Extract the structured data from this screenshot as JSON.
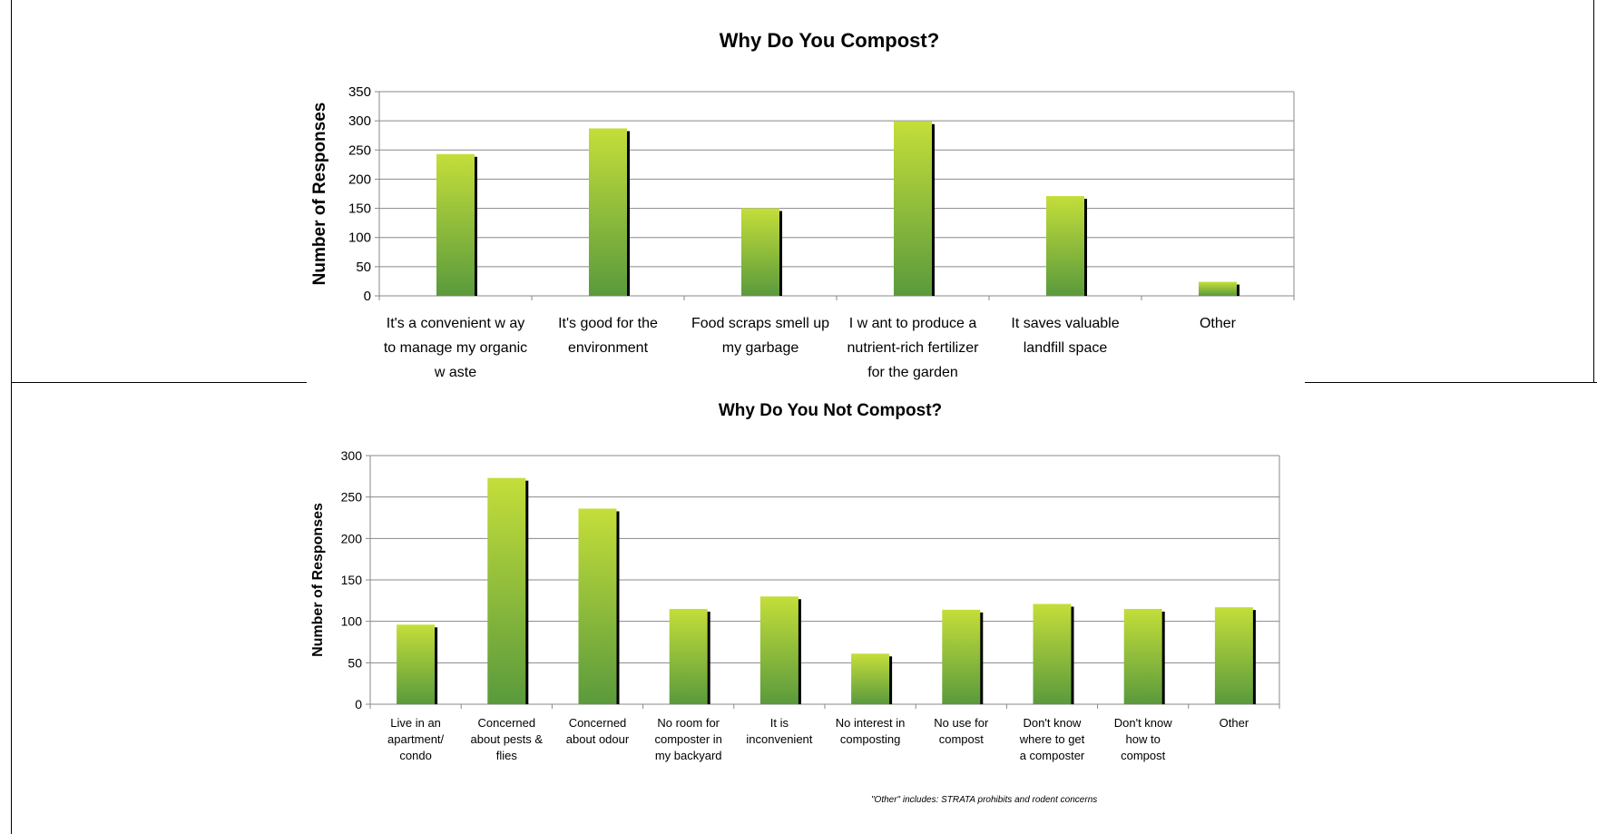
{
  "chart_data": [
    {
      "type": "bar",
      "title": "Why Do You Compost?",
      "xlabel": "",
      "ylabel": "Number of Responses",
      "categories": [
        [
          "It's a convenient w ay",
          "to manage my organic",
          "w aste"
        ],
        [
          "It's good for the",
          "environment"
        ],
        [
          "Food scraps smell up",
          "my garbage"
        ],
        [
          "I w ant to produce a",
          "nutrient-rich fertilizer",
          "for the garden"
        ],
        [
          "It saves valuable",
          "landfill space"
        ],
        [
          "Other"
        ]
      ],
      "values": [
        243,
        287,
        150,
        299,
        171,
        24
      ],
      "ylim": [
        0,
        350
      ],
      "yticks": [
        "0",
        "50",
        "100",
        "150",
        "200",
        "250",
        "300",
        "350"
      ],
      "grid": true,
      "legend": "none"
    },
    {
      "type": "bar",
      "title": "Why Do You Not Compost?",
      "xlabel": "",
      "ylabel": "Number of Responses",
      "categories": [
        [
          "Live in an",
          "apartment/",
          "condo"
        ],
        [
          "Concerned",
          "about pests &",
          "flies"
        ],
        [
          "Concerned",
          "about odour"
        ],
        [
          "No room for",
          "composter in",
          "my backyard"
        ],
        [
          "It is",
          "inconvenient"
        ],
        [
          "No interest in",
          "composting"
        ],
        [
          "No use for",
          "compost"
        ],
        [
          "Don't know",
          "where to get",
          "a composter"
        ],
        [
          "Don't know",
          "how to",
          "compost"
        ],
        [
          "Other"
        ]
      ],
      "values": [
        96,
        273,
        236,
        115,
        130,
        61,
        114,
        121,
        115,
        117
      ],
      "ylim": [
        0,
        300
      ],
      "yticks": [
        "0",
        "50",
        "100",
        "150",
        "200",
        "250",
        "300"
      ],
      "grid": true,
      "legend": "none"
    }
  ],
  "footnote": "\"Other\" includes: STRATA prohibits and rodent concerns",
  "colors": {
    "bar_top": "#c4de3a",
    "bar_bottom": "#5a9a3c",
    "bar_shadow": "#000000",
    "grid": "#888888",
    "axis": "#888888"
  }
}
